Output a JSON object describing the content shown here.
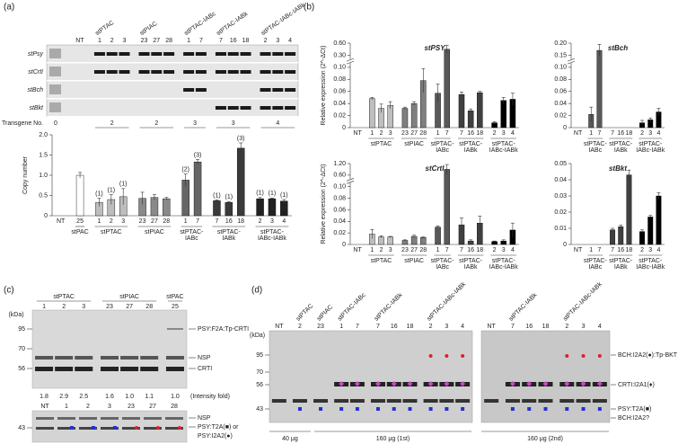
{
  "panel_a": {
    "label": "(a)",
    "gel": {
      "lane_groups": [
        {
          "name": null,
          "lanes": [
            "NT"
          ]
        },
        {
          "name": "stPTAC",
          "lanes": [
            "1",
            "2",
            "3"
          ]
        },
        {
          "name": "stPIAC",
          "lanes": [
            "23",
            "27",
            "28"
          ]
        },
        {
          "name": "stPTAC-IABc",
          "lanes": [
            "1",
            "7"
          ]
        },
        {
          "name": "stPTAC-IABk",
          "lanes": [
            "7",
            "16",
            "18"
          ]
        },
        {
          "name": "stPTAC-IABc-IABk",
          "lanes": [
            "2",
            "3",
            "4"
          ]
        }
      ],
      "rows": [
        "stPsy",
        "stCrtI",
        "stBch",
        "stBkt"
      ],
      "transgene_label": "Transgene No.",
      "transgene_numbers": [
        "0",
        "2",
        "2",
        "3",
        "3",
        "4"
      ]
    }
  },
  "panel_b": {
    "label": "(b)"
  },
  "panel_c": {
    "label": "(c)",
    "groups": [
      {
        "name": "stPTAC",
        "lanes": [
          "1",
          "2",
          "3"
        ]
      },
      {
        "name": "stPIAC",
        "lanes": [
          "23",
          "27",
          "28"
        ]
      },
      {
        "name": "stPAC",
        "lanes": [
          "25"
        ]
      }
    ],
    "kda": "(kDa)",
    "markers": [
      "95",
      "70",
      "56"
    ],
    "bands": [
      "PSY:F2A:Tp-CRTI",
      "NSP",
      "CRTI"
    ],
    "intensities": [
      "1.8",
      "2.9",
      "2.5",
      "1.6",
      "1.0",
      "1.1",
      "1.0"
    ],
    "intensity_label": "(Intensity fold)",
    "lower_lanes": [
      "NT",
      "1",
      "2",
      "3",
      "23",
      "27",
      "28"
    ],
    "lower_markers": [
      "43"
    ],
    "lower_bands": [
      "NSP",
      "PSY:T2A(■) or",
      "PSY:I2A2(●)"
    ]
  },
  "panel_d": {
    "label": "(d)",
    "kda": "(kDa)",
    "markers": [
      "95",
      "70",
      "56",
      "43"
    ],
    "left_groups": [
      {
        "name": null,
        "lanes": [
          "NT"
        ]
      },
      {
        "name": "stPTAC",
        "lanes": [
          "2"
        ]
      },
      {
        "name": "stPIAC",
        "lanes": [
          "23"
        ]
      },
      {
        "name": "stPTAC-IABc",
        "lanes": [
          "1",
          "7"
        ]
      },
      {
        "name": "stPTAC-IABk",
        "lanes": [
          "7",
          "16",
          "18"
        ]
      },
      {
        "name": "stPTAC-IABc-IABk",
        "lanes": [
          "2",
          "3",
          "4"
        ]
      }
    ],
    "right_groups": [
      {
        "name": null,
        "lanes": [
          "NT"
        ]
      },
      {
        "name": "stPTAC-IABk",
        "lanes": [
          "7",
          "16",
          "18"
        ]
      },
      {
        "name": "stPTAC-IABc-IABk",
        "lanes": [
          "2",
          "3",
          "4"
        ]
      }
    ],
    "bands": [
      "BCH:I2A2(●):Tp-BKT",
      "CRTI:I2A1(♦)",
      "PSY:T2A(■)",
      "BCH:I2A2?"
    ],
    "loads": [
      "40 μg",
      "160 μg (1st)",
      "160 μg (2nd)"
    ]
  },
  "chart_data": [
    {
      "type": "bar",
      "ylabel": "Copy number",
      "ylim": [
        0,
        2
      ],
      "yticks": [
        0,
        0.5,
        {
          "value": 1,
          "label": "1.0"
        },
        1.5,
        {
          "value": 2,
          "label": "2.0"
        }
      ],
      "groups": [
        {
          "name": null,
          "color": "#ffffff",
          "categories": [
            "NT"
          ],
          "values": [
            null
          ]
        },
        {
          "name": "stPAC",
          "color": "#ffffff",
          "categories": [
            "25"
          ],
          "values": [
            1.0
          ],
          "errors": [
            0.07
          ]
        },
        {
          "name": "stPTAC",
          "color": "#bdbdbd",
          "categories": [
            "1",
            "2",
            "3"
          ],
          "values": [
            0.33,
            0.4,
            0.47
          ],
          "errors": [
            0.1,
            0.12,
            0.2
          ],
          "annotations": [
            "(1)",
            "(1)",
            "(1)"
          ]
        },
        {
          "name": "stPIAC",
          "color": "#8a8a8a",
          "categories": [
            "23",
            "27",
            "28"
          ],
          "values": [
            0.43,
            0.45,
            0.42
          ],
          "errors": [
            0.15,
            0.07,
            0.03
          ]
        },
        {
          "name": "stPTAC-IABc",
          "color": "#666666",
          "categories": [
            "1",
            "7"
          ],
          "values": [
            0.88,
            1.33
          ],
          "errors": [
            0.15,
            0.06
          ],
          "annotations": [
            "(2)",
            "(3)"
          ]
        },
        {
          "name": "stPTAC-IABk",
          "color": "#3a3a3a",
          "categories": [
            "7",
            "16",
            "18"
          ],
          "values": [
            0.37,
            0.33,
            1.67
          ],
          "errors": [
            0.02,
            0.02,
            0.13
          ],
          "annotations": [
            "(1)",
            "(1)",
            "(3)"
          ]
        },
        {
          "name": "stPTAC-IABc-IABk",
          "color": "#222222",
          "categories": [
            "2",
            "3",
            "4"
          ],
          "values": [
            0.42,
            0.42,
            0.36
          ],
          "errors": [
            0.03,
            0.02,
            0.04
          ],
          "annotations": [
            "(1)",
            "(1)",
            "(1)"
          ]
        }
      ]
    },
    {
      "type": "bar",
      "title": "stPSY",
      "ylabel": "Relative expression (2^-ΔCt)",
      "ybreak": true,
      "ylim": [
        0,
        0.6
      ],
      "yticks": [
        0,
        0.02,
        0.04,
        0.06,
        0.08,
        {
          "value": 0.1,
          "label": "0.10"
        },
        {
          "value": 0.3,
          "label": "0.30"
        },
        {
          "value": 0.6,
          "label": "0.60"
        }
      ],
      "groups": [
        {
          "name": null,
          "color": "#ffffff",
          "categories": [
            "NT"
          ],
          "values": [
            0
          ]
        },
        {
          "name": "stPTAC",
          "color": "#bfbfbf",
          "categories": [
            "1",
            "2",
            "3"
          ],
          "values": [
            0.048,
            0.032,
            0.037
          ],
          "errors": [
            0.002,
            0.007,
            0.006
          ]
        },
        {
          "name": "stPIAC",
          "color": "#7f7f7f",
          "categories": [
            "23",
            "27",
            "28"
          ],
          "values": [
            0.032,
            0.04,
            0.078
          ],
          "errors": [
            0.002,
            0.003,
            0.02
          ]
        },
        {
          "name": "stPTAC-IABc",
          "color": "#595959",
          "categories": [
            "1",
            "7"
          ],
          "values": [
            0.057,
            0.45
          ],
          "errors": [
            0.015,
            0.1
          ]
        },
        {
          "name": "stPTAC-IABk",
          "color": "#404040",
          "categories": [
            "7",
            "16",
            "18"
          ],
          "values": [
            0.055,
            0.028,
            0.058
          ],
          "errors": [
            0.004,
            0.003,
            0.002
          ]
        },
        {
          "name": "stPTAC-IABc-IABk",
          "color": "#000000",
          "categories": [
            "2",
            "3",
            "4"
          ],
          "values": [
            0.008,
            0.045,
            0.047
          ],
          "errors": [
            0.002,
            0.005,
            0.01
          ]
        }
      ]
    },
    {
      "type": "bar",
      "title": "stBch",
      "ybreak": true,
      "ylim": [
        0,
        0.2
      ],
      "yticks": [
        0,
        0.02,
        0.04,
        0.06,
        0.08,
        {
          "value": 0.1,
          "label": "0.10"
        },
        {
          "value": 0.15,
          "label": "0.15"
        },
        {
          "value": 0.2,
          "label": "0.20"
        }
      ],
      "groups": [
        {
          "name": null,
          "color": "#ffffff",
          "categories": [
            "NT"
          ],
          "values": [
            0
          ]
        },
        {
          "name": "stPTAC-IABc",
          "color": "#595959",
          "categories": [
            "1",
            "7"
          ],
          "values": [
            0.022,
            0.17
          ],
          "errors": [
            0.012,
            0.025
          ]
        },
        {
          "name": "stPTAC-IABk",
          "color": "#404040",
          "categories": [
            "7",
            "16",
            "18"
          ],
          "values": [
            0,
            0,
            0
          ]
        },
        {
          "name": "stPTAC-IABc-IABk",
          "color": "#000000",
          "categories": [
            "2",
            "3",
            "4"
          ],
          "values": [
            0.008,
            0.013,
            0.026
          ],
          "errors": [
            0.004,
            0.003,
            0.006
          ]
        }
      ]
    },
    {
      "type": "bar",
      "title": "stCrtI",
      "ylabel": "Relative expression (2^-ΔCt)",
      "ybreak": true,
      "ylim": [
        0,
        1.2
      ],
      "yticks": [
        0,
        0.02,
        0.04,
        0.06,
        0.08,
        {
          "value": 0.1,
          "label": "0.10"
        },
        {
          "value": 0.6,
          "label": "0.60"
        },
        {
          "value": 1.2,
          "label": "1.20"
        }
      ],
      "groups": [
        {
          "name": null,
          "color": "#ffffff",
          "categories": [
            "NT"
          ],
          "values": [
            0
          ]
        },
        {
          "name": "stPTAC",
          "color": "#bfbfbf",
          "categories": [
            "1",
            "2",
            "3"
          ],
          "values": [
            0.018,
            0.013,
            0.013
          ],
          "errors": [
            0.008,
            0.002,
            0.001
          ]
        },
        {
          "name": "stPIAC",
          "color": "#7f7f7f",
          "categories": [
            "23",
            "27",
            "28"
          ],
          "values": [
            0.007,
            0.014,
            0.012
          ],
          "errors": [
            0.001,
            0.002,
            0.001
          ]
        },
        {
          "name": "stPTAC-IABc",
          "color": "#595959",
          "categories": [
            "1",
            "7"
          ],
          "values": [
            0.03,
            0.9
          ],
          "errors": [
            0.002,
            0.25
          ]
        },
        {
          "name": "stPTAC-IABk",
          "color": "#404040",
          "categories": [
            "7",
            "16",
            "18"
          ],
          "values": [
            0.034,
            0.006,
            0.037
          ],
          "errors": [
            0.012,
            0.002,
            0.012
          ]
        },
        {
          "name": "stPTAC-IABc-IABk",
          "color": "#000000",
          "categories": [
            "2",
            "3",
            "4"
          ],
          "values": [
            0.005,
            0.006,
            0.025
          ],
          "errors": [
            0.001,
            0.002,
            0.012
          ]
        }
      ]
    },
    {
      "type": "bar",
      "title": "stBkt",
      "ylim": [
        0,
        0.05
      ],
      "yticks": [
        0,
        0.01,
        0.02,
        0.03,
        0.04,
        0.05
      ],
      "groups": [
        {
          "name": null,
          "color": "#ffffff",
          "categories": [
            "NT"
          ],
          "values": [
            0
          ]
        },
        {
          "name": "stPTAC-IABc",
          "color": "#595959",
          "categories": [
            "1",
            "7"
          ],
          "values": [
            0,
            0
          ]
        },
        {
          "name": "stPTAC-IABk",
          "color": "#404040",
          "categories": [
            "7",
            "16",
            "18"
          ],
          "values": [
            0.009,
            0.011,
            0.043
          ],
          "errors": [
            0.001,
            0.001,
            0.003
          ]
        },
        {
          "name": "stPTAC-IABc-IABk",
          "color": "#000000",
          "categories": [
            "2",
            "3",
            "4"
          ],
          "values": [
            0.008,
            0.017,
            0.03
          ],
          "errors": [
            0.001,
            0.001,
            0.002
          ]
        }
      ]
    }
  ]
}
